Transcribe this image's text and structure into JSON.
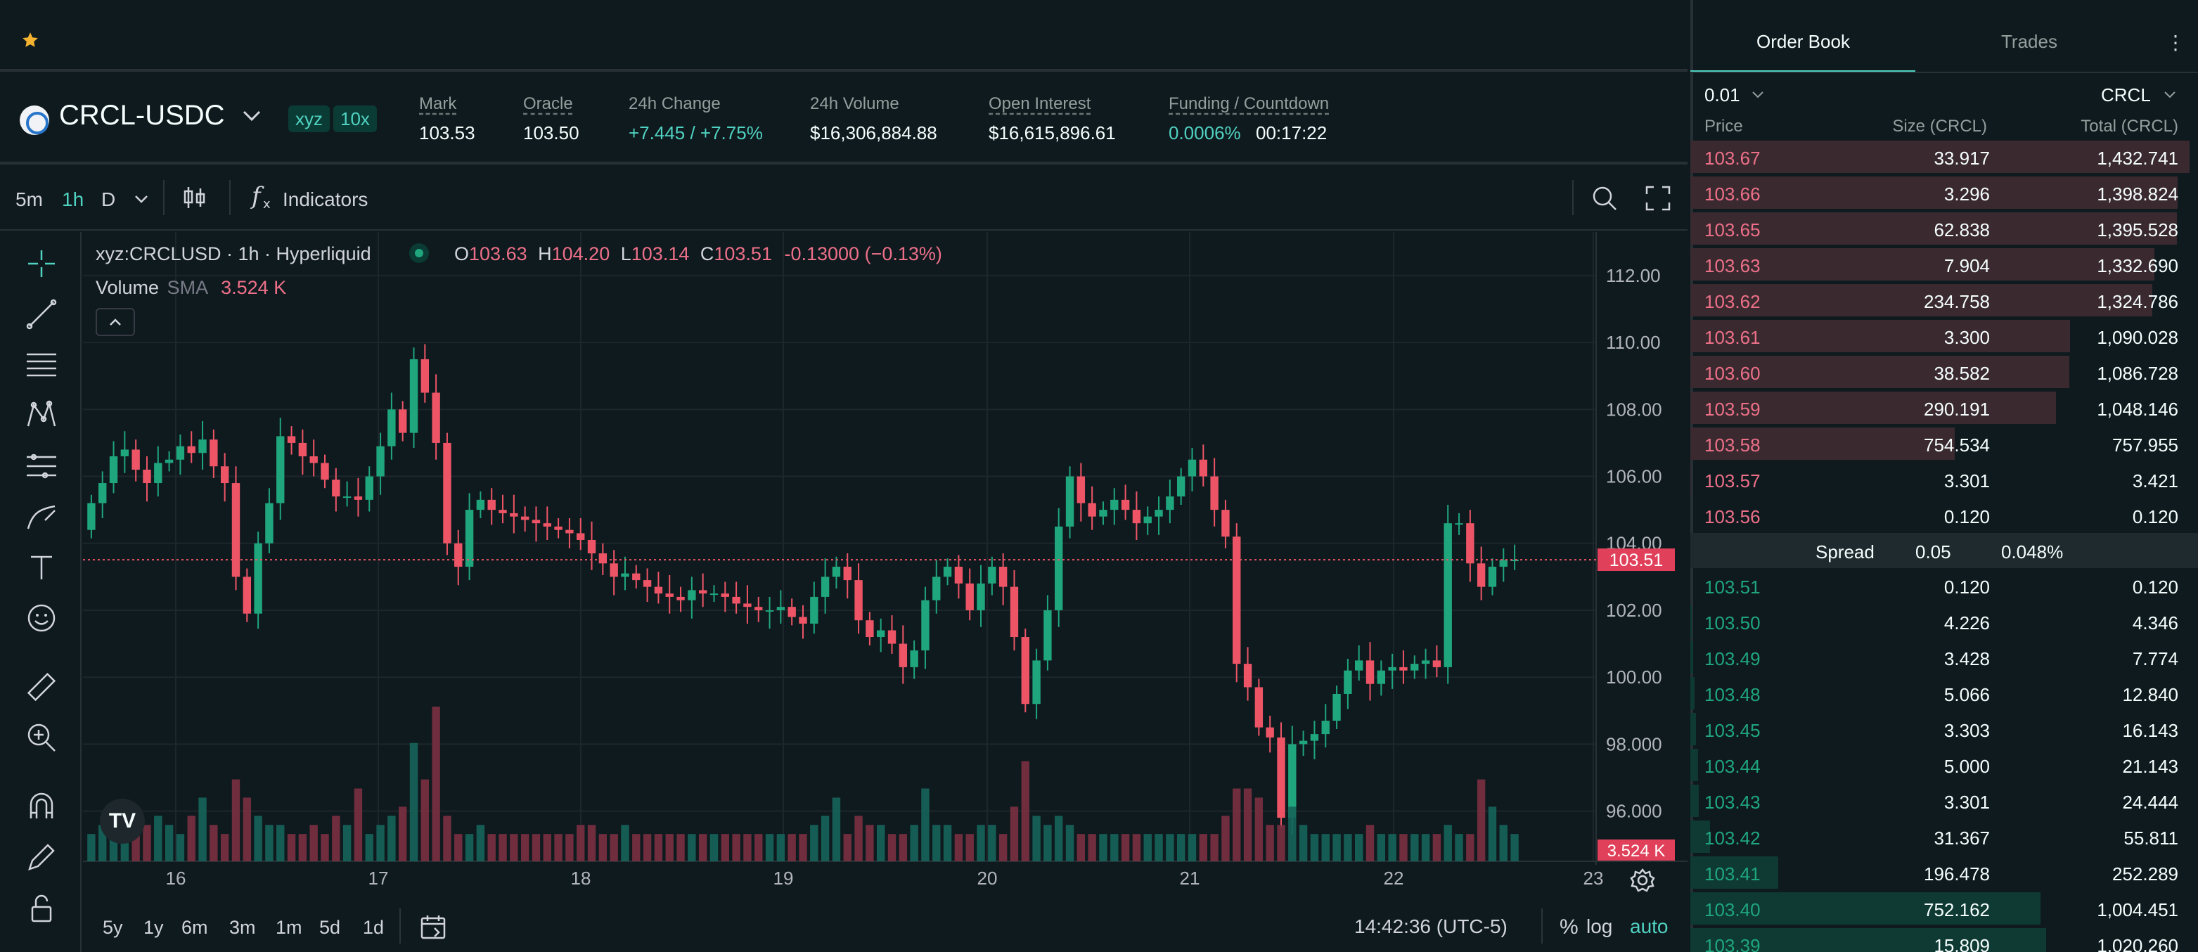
{
  "pair": {
    "symbol": "CRCL-USDC",
    "tag_exchange": "xyz",
    "tag_leverage": "10x"
  },
  "stats": {
    "mark_label": "Mark",
    "mark": "103.53",
    "oracle_label": "Oracle",
    "oracle": "103.50",
    "change_label": "24h Change",
    "change": "+7.445 / +7.75%",
    "volume_label": "24h Volume",
    "volume": "$16,306,884.88",
    "oi_label": "Open Interest",
    "oi": "$16,615,896.61",
    "funding_label": "Funding / Countdown",
    "funding": "0.0006%",
    "countdown": "00:17:22"
  },
  "toolbar": {
    "timeframes": [
      "5m",
      "1h",
      "D"
    ],
    "active_timeframe": "1h",
    "indicators_label": "Indicators"
  },
  "legend": {
    "symbol": "xyz:CRCLUSD · 1h · Hyperliquid",
    "o_label": "O",
    "o": "103.63",
    "h_label": "H",
    "h": "104.20",
    "l_label": "L",
    "l": "103.14",
    "c_label": "C",
    "c": "103.51",
    "change": "-0.13000 (−0.13%)",
    "volume_label": "Volume",
    "sma_label": "SMA",
    "volume_value": "3.524 K"
  },
  "chart_data": {
    "type": "candlestick",
    "y_ticks": [
      "112.00",
      "110.00",
      "108.00",
      "106.00",
      "104.00",
      "102.00",
      "100.00",
      "98.000",
      "96.000"
    ],
    "y_tick_values": [
      112,
      110,
      108,
      106,
      104,
      102,
      100,
      98,
      96
    ],
    "ylim": [
      94.5,
      113.3
    ],
    "x_ticks": [
      "16",
      "17",
      "18",
      "19",
      "20",
      "21",
      "22",
      "23"
    ],
    "last_price_label": "103.51",
    "last_price": 103.51,
    "volume_label": "3.524 K",
    "closes": [
      105.2,
      105.8,
      106.6,
      106.8,
      106.2,
      105.8,
      106.4,
      106.5,
      106.9,
      106.7,
      107.1,
      106.3,
      105.8,
      103.0,
      101.9,
      104.0,
      105.2,
      107.2,
      107.0,
      106.6,
      106.4,
      105.9,
      105.4,
      105.4,
      105.3,
      106.0,
      106.9,
      108.0,
      107.3,
      109.5,
      108.5,
      107.0,
      104.0,
      103.3,
      105.0,
      105.3,
      105.0,
      104.9,
      104.8,
      104.7,
      104.6,
      104.5,
      104.4,
      104.3,
      104.1,
      103.7,
      103.4,
      103.0,
      103.1,
      102.9,
      102.7,
      102.5,
      102.4,
      102.3,
      102.6,
      102.5,
      102.5,
      102.4,
      102.2,
      102.1,
      102.0,
      102.0,
      102.1,
      101.8,
      101.6,
      102.4,
      103.0,
      103.3,
      102.9,
      101.7,
      101.2,
      101.4,
      101.0,
      100.3,
      100.8,
      102.3,
      103.0,
      103.3,
      102.8,
      102.0,
      102.8,
      103.3,
      102.7,
      101.2,
      99.2,
      100.5,
      102.0,
      104.5,
      106.0,
      105.2,
      104.8,
      105.0,
      105.3,
      105.0,
      104.6,
      104.8,
      105.0,
      105.4,
      106.0,
      106.5,
      106.0,
      105.0,
      104.2,
      100.4,
      99.7,
      98.5,
      98.2,
      95.8,
      98.0,
      98.1,
      98.3,
      98.7,
      99.5,
      100.2,
      100.5,
      99.8,
      100.2,
      100.3,
      100.2,
      100.4,
      100.5,
      100.3,
      104.6,
      104.6,
      103.4,
      102.7,
      103.3,
      103.5,
      103.51
    ],
    "volumes": [
      3,
      4,
      6,
      5,
      3,
      4,
      5,
      4,
      3,
      5,
      7,
      4,
      3,
      9,
      7,
      5,
      4,
      4,
      3,
      3,
      4,
      3,
      5,
      4,
      8,
      3,
      4,
      5,
      6,
      13,
      9,
      17,
      5,
      3,
      3,
      4,
      3,
      3,
      3,
      3,
      3,
      3,
      3,
      3,
      4,
      4,
      3,
      3,
      4,
      3,
      3,
      3,
      3,
      3,
      3,
      3,
      3,
      3,
      3,
      3,
      3,
      3,
      3,
      3,
      3,
      4,
      5,
      7,
      3,
      5,
      4,
      4,
      3,
      3,
      4,
      8,
      4,
      4,
      3,
      3,
      4,
      4,
      3,
      6,
      11,
      5,
      4,
      5,
      4,
      3,
      3,
      3,
      3,
      3,
      3,
      3,
      3,
      3,
      3,
      3,
      3,
      3,
      5,
      8,
      8,
      7,
      4,
      4,
      6,
      4,
      3,
      3,
      3,
      3,
      3,
      4,
      3,
      3,
      3,
      3,
      3,
      3,
      4,
      3,
      3,
      9,
      6,
      4,
      3,
      3,
      3,
      3
    ]
  },
  "bottom_bar": {
    "ranges": [
      "5y",
      "1y",
      "6m",
      "3m",
      "1m",
      "5d",
      "1d"
    ],
    "clock": "14:42:36 (UTC-5)",
    "percent_label": "%",
    "log_label": "log",
    "auto_label": "auto"
  },
  "orderbook": {
    "tab_book": "Order Book",
    "tab_trades": "Trades",
    "tick_size": "0.01",
    "unit": "CRCL",
    "col_price": "Price",
    "col_size": "Size (CRCL)",
    "col_total": "Total (CRCL)",
    "spread_label": "Spread",
    "spread_value": "0.05",
    "spread_pct": "0.048%",
    "asks": [
      {
        "price": "103.67",
        "size": "33.917",
        "total": "1,432.741",
        "fill": 1.0
      },
      {
        "price": "103.66",
        "size": "3.296",
        "total": "1,398.824",
        "fill": 0.976
      },
      {
        "price": "103.65",
        "size": "62.838",
        "total": "1,395.528",
        "fill": 0.974
      },
      {
        "price": "103.63",
        "size": "7.904",
        "total": "1,332.690",
        "fill": 0.93
      },
      {
        "price": "103.62",
        "size": "234.758",
        "total": "1,324.786",
        "fill": 0.925
      },
      {
        "price": "103.61",
        "size": "3.300",
        "total": "1,090.028",
        "fill": 0.761
      },
      {
        "price": "103.60",
        "size": "38.582",
        "total": "1,086.728",
        "fill": 0.759
      },
      {
        "price": "103.59",
        "size": "290.191",
        "total": "1,048.146",
        "fill": 0.732
      },
      {
        "price": "103.58",
        "size": "754.534",
        "total": "757.955",
        "fill": 0.529
      },
      {
        "price": "103.57",
        "size": "3.301",
        "total": "3.421",
        "fill": 0.002
      },
      {
        "price": "103.56",
        "size": "0.120",
        "total": "0.120",
        "fill": 0.0
      }
    ],
    "bids": [
      {
        "price": "103.51",
        "size": "0.120",
        "total": "0.120",
        "fill": 0.0
      },
      {
        "price": "103.50",
        "size": "4.226",
        "total": "4.346",
        "fill": 0.003
      },
      {
        "price": "103.49",
        "size": "3.428",
        "total": "7.774",
        "fill": 0.005
      },
      {
        "price": "103.48",
        "size": "5.066",
        "total": "12.840",
        "fill": 0.009
      },
      {
        "price": "103.45",
        "size": "3.303",
        "total": "16.143",
        "fill": 0.011
      },
      {
        "price": "103.44",
        "size": "5.000",
        "total": "21.143",
        "fill": 0.015
      },
      {
        "price": "103.43",
        "size": "3.301",
        "total": "24.444",
        "fill": 0.017
      },
      {
        "price": "103.42",
        "size": "31.367",
        "total": "55.811",
        "fill": 0.039
      },
      {
        "price": "103.41",
        "size": "196.478",
        "total": "252.289",
        "fill": 0.176
      },
      {
        "price": "103.40",
        "size": "752.162",
        "total": "1,004.451",
        "fill": 0.701
      },
      {
        "price": "103.39",
        "size": "15.809",
        "total": "1,020.260",
        "fill": 0.712
      }
    ]
  }
}
